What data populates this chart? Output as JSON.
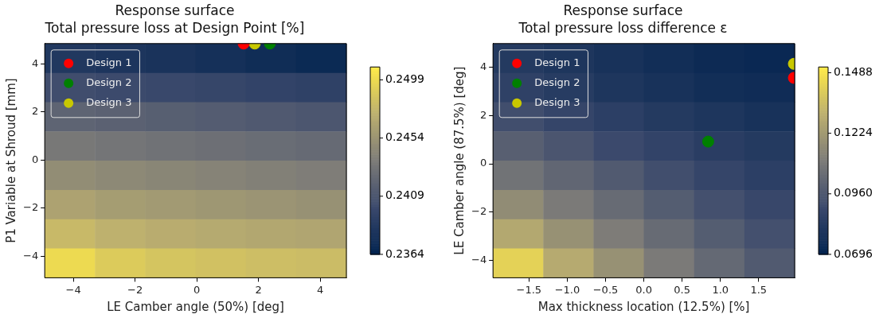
{
  "chart_data": [
    {
      "type": "heatmap",
      "title": "Response surface",
      "subtitle": "Total pressure loss at Design Point [%]",
      "xlabel": "LE Camber angle (50%) [deg]",
      "ylabel": "P1 Variable at Shroud [mm]",
      "xlim": [
        -4.93,
        4.85
      ],
      "ylim": [
        -4.9,
        4.84
      ],
      "xticks": [
        -4,
        -2,
        0,
        2,
        4
      ],
      "yticks": [
        -4,
        -2,
        0,
        2,
        4
      ],
      "clim": [
        0.2364,
        0.2509
      ],
      "cticks": [
        0.2364,
        0.2409,
        0.2454,
        0.2499
      ],
      "cells": [
        [
          0.2384,
          0.2382,
          0.238,
          0.2377,
          0.2374,
          0.2371
        ],
        [
          0.2403,
          0.2401,
          0.2399,
          0.2397,
          0.2395,
          0.2393
        ],
        [
          0.242,
          0.2418,
          0.2416,
          0.2414,
          0.2412,
          0.241
        ],
        [
          0.2434,
          0.2432,
          0.243,
          0.2428,
          0.2426,
          0.2424
        ],
        [
          0.2449,
          0.2446,
          0.2444,
          0.2442,
          0.244,
          0.2438
        ],
        [
          0.2464,
          0.246,
          0.2458,
          0.2456,
          0.2454,
          0.2452
        ],
        [
          0.2479,
          0.2474,
          0.2471,
          0.2469,
          0.2467,
          0.2466
        ],
        [
          0.2499,
          0.249,
          0.2486,
          0.2484,
          0.2482,
          0.2481
        ]
      ],
      "series": [
        {
          "type": "scatter",
          "name": "Design 1",
          "color": "#ff0000",
          "x": [
            1.52
          ],
          "values": [
            4.84
          ]
        },
        {
          "type": "scatter",
          "name": "Design 2",
          "color": "#008000",
          "x": [
            2.37
          ],
          "values": [
            4.84
          ]
        },
        {
          "type": "scatter",
          "name": "Design 3",
          "color": "#c8c800",
          "x": [
            1.88
          ],
          "values": [
            4.84
          ]
        }
      ],
      "marker": "circle",
      "legend": "top left"
    },
    {
      "type": "heatmap",
      "title": "Response surface",
      "subtitle": "Total pressure loss difference ε",
      "xlabel": "Max thickness location (12.5%) [%]",
      "ylabel": "LE Camber angle (87.5%) [deg]",
      "xlim": [
        -1.97,
        1.97
      ],
      "ylim": [
        -4.72,
        4.98
      ],
      "xticks": [
        -1.5,
        {
          "value": -1,
          "label": "−1.0"
        },
        -0.5,
        {
          "value": 0,
          "label": "0.0"
        },
        0.5,
        {
          "value": 1,
          "label": "1.0"
        },
        1.5
      ],
      "yticks": [
        -4,
        -2,
        0,
        2,
        4
      ],
      "clim": [
        0.0696,
        0.1513
      ],
      "cticks": [
        {
          "value": 0.0696,
          "label": "0.0696"
        },
        {
          "value": 0.096,
          "label": "0.0960"
        },
        0.1224,
        0.1488
      ],
      "cells": [
        [
          0.082,
          0.08,
          0.078,
          0.076,
          0.074,
          0.073
        ],
        [
          0.086,
          0.083,
          0.08,
          0.078,
          0.076,
          0.075
        ],
        [
          0.092,
          0.088,
          0.085,
          0.082,
          0.08,
          0.078
        ],
        [
          0.099,
          0.095,
          0.09,
          0.087,
          0.084,
          0.082
        ],
        [
          0.107,
          0.102,
          0.097,
          0.092,
          0.088,
          0.085
        ],
        [
          0.117,
          0.11,
          0.104,
          0.098,
          0.093,
          0.089
        ],
        [
          0.128,
          0.119,
          0.111,
          0.104,
          0.098,
          0.093
        ],
        [
          0.143,
          0.129,
          0.119,
          0.11,
          0.103,
          0.097
        ]
      ],
      "series": [
        {
          "type": "scatter",
          "name": "Design 1",
          "color": "#ff0000",
          "x": [
            1.96
          ],
          "values": [
            3.56
          ]
        },
        {
          "type": "scatter",
          "name": "Design 2",
          "color": "#008000",
          "x": [
            0.84
          ],
          "values": [
            0.92
          ]
        },
        {
          "type": "scatter",
          "name": "Design 3",
          "color": "#c8c800",
          "x": [
            1.96
          ],
          "values": [
            4.14
          ]
        }
      ],
      "marker": "circle",
      "legend": "top left"
    }
  ]
}
